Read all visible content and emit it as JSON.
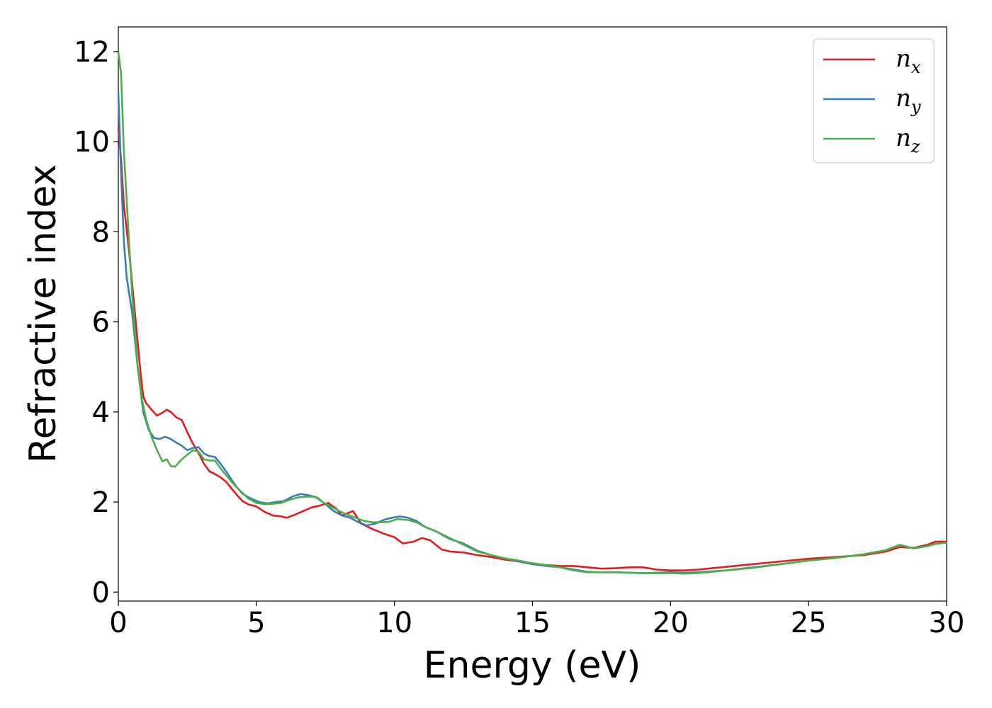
{
  "chart_data": {
    "type": "line",
    "xlabel": "Energy (eV)",
    "ylabel": "Refractive index",
    "xlim": [
      0,
      30
    ],
    "ylim": [
      -0.2,
      12.55
    ],
    "xticks": [
      "0",
      "5",
      "10",
      "15",
      "20",
      "25",
      "30"
    ],
    "yticks": [
      "0",
      "2",
      "4",
      "6",
      "8",
      "10",
      "12"
    ],
    "grid": false,
    "legend_position": "top-right",
    "series": [
      {
        "name": "n_x",
        "legend_base": "n",
        "legend_sub": "x",
        "color": "#e41a1c",
        "points": [
          [
            0,
            10.3
          ],
          [
            0.1,
            9.6
          ],
          [
            0.2,
            8.6
          ],
          [
            0.4,
            7.5
          ],
          [
            0.6,
            6.2
          ],
          [
            0.8,
            4.9
          ],
          [
            0.9,
            4.35
          ],
          [
            1.0,
            4.2
          ],
          [
            1.2,
            4.05
          ],
          [
            1.4,
            3.92
          ],
          [
            1.6,
            3.98
          ],
          [
            1.75,
            4.05
          ],
          [
            1.9,
            4.0
          ],
          [
            2.1,
            3.88
          ],
          [
            2.3,
            3.82
          ],
          [
            2.5,
            3.55
          ],
          [
            2.7,
            3.3
          ],
          [
            2.9,
            3.1
          ],
          [
            3.1,
            2.85
          ],
          [
            3.3,
            2.68
          ],
          [
            3.5,
            2.62
          ],
          [
            3.7,
            2.55
          ],
          [
            3.9,
            2.45
          ],
          [
            4.1,
            2.3
          ],
          [
            4.3,
            2.15
          ],
          [
            4.5,
            2.02
          ],
          [
            4.7,
            1.95
          ],
          [
            5.0,
            1.9
          ],
          [
            5.3,
            1.78
          ],
          [
            5.6,
            1.7
          ],
          [
            5.9,
            1.68
          ],
          [
            6.1,
            1.65
          ],
          [
            6.4,
            1.72
          ],
          [
            6.7,
            1.8
          ],
          [
            7.0,
            1.88
          ],
          [
            7.3,
            1.92
          ],
          [
            7.6,
            1.98
          ],
          [
            7.9,
            1.85
          ],
          [
            8.1,
            1.7
          ],
          [
            8.3,
            1.75
          ],
          [
            8.5,
            1.8
          ],
          [
            8.8,
            1.52
          ],
          [
            9.2,
            1.4
          ],
          [
            9.6,
            1.3
          ],
          [
            10.0,
            1.22
          ],
          [
            10.3,
            1.08
          ],
          [
            10.7,
            1.12
          ],
          [
            11.0,
            1.2
          ],
          [
            11.3,
            1.15
          ],
          [
            11.7,
            0.95
          ],
          [
            12.0,
            0.9
          ],
          [
            12.5,
            0.88
          ],
          [
            13.0,
            0.82
          ],
          [
            13.5,
            0.78
          ],
          [
            14.0,
            0.72
          ],
          [
            14.5,
            0.68
          ],
          [
            15.0,
            0.62
          ],
          [
            15.5,
            0.6
          ],
          [
            16.0,
            0.58
          ],
          [
            16.5,
            0.58
          ],
          [
            17.0,
            0.55
          ],
          [
            17.5,
            0.52
          ],
          [
            18.0,
            0.53
          ],
          [
            18.5,
            0.55
          ],
          [
            19.0,
            0.55
          ],
          [
            19.5,
            0.5
          ],
          [
            20.0,
            0.48
          ],
          [
            20.5,
            0.48
          ],
          [
            21.0,
            0.5
          ],
          [
            21.5,
            0.53
          ],
          [
            22.0,
            0.56
          ],
          [
            23.0,
            0.62
          ],
          [
            24.0,
            0.68
          ],
          [
            25.0,
            0.74
          ],
          [
            26.0,
            0.78
          ],
          [
            27.0,
            0.82
          ],
          [
            27.8,
            0.9
          ],
          [
            28.3,
            1.0
          ],
          [
            28.8,
            0.98
          ],
          [
            29.3,
            1.05
          ],
          [
            29.6,
            1.12
          ],
          [
            30.0,
            1.12
          ]
        ]
      },
      {
        "name": "n_y",
        "legend_base": "n",
        "legend_sub": "y",
        "color": "#377eb8",
        "points": [
          [
            0,
            11.1
          ],
          [
            0.1,
            9.3
          ],
          [
            0.2,
            7.8
          ],
          [
            0.3,
            7.0
          ],
          [
            0.5,
            6.2
          ],
          [
            0.7,
            5.0
          ],
          [
            0.9,
            4.0
          ],
          [
            1.1,
            3.6
          ],
          [
            1.3,
            3.42
          ],
          [
            1.5,
            3.4
          ],
          [
            1.7,
            3.45
          ],
          [
            1.9,
            3.4
          ],
          [
            2.1,
            3.32
          ],
          [
            2.3,
            3.25
          ],
          [
            2.5,
            3.15
          ],
          [
            2.7,
            3.2
          ],
          [
            2.9,
            3.22
          ],
          [
            3.1,
            3.08
          ],
          [
            3.3,
            3.02
          ],
          [
            3.5,
            3.0
          ],
          [
            3.7,
            2.85
          ],
          [
            3.9,
            2.68
          ],
          [
            4.1,
            2.5
          ],
          [
            4.3,
            2.32
          ],
          [
            4.5,
            2.18
          ],
          [
            4.8,
            2.08
          ],
          [
            5.1,
            2.0
          ],
          [
            5.4,
            1.97
          ],
          [
            5.7,
            2.0
          ],
          [
            6.0,
            2.02
          ],
          [
            6.3,
            2.12
          ],
          [
            6.6,
            2.18
          ],
          [
            6.9,
            2.15
          ],
          [
            7.2,
            2.1
          ],
          [
            7.5,
            1.95
          ],
          [
            7.8,
            1.8
          ],
          [
            8.1,
            1.7
          ],
          [
            8.4,
            1.65
          ],
          [
            8.7,
            1.55
          ],
          [
            9.0,
            1.48
          ],
          [
            9.3,
            1.52
          ],
          [
            9.6,
            1.6
          ],
          [
            9.9,
            1.65
          ],
          [
            10.2,
            1.68
          ],
          [
            10.5,
            1.65
          ],
          [
            10.8,
            1.58
          ],
          [
            11.1,
            1.45
          ],
          [
            11.5,
            1.35
          ],
          [
            12.0,
            1.18
          ],
          [
            12.5,
            1.08
          ],
          [
            13.0,
            0.92
          ],
          [
            13.5,
            0.82
          ],
          [
            14.0,
            0.75
          ],
          [
            14.5,
            0.68
          ],
          [
            15.0,
            0.62
          ],
          [
            15.5,
            0.58
          ],
          [
            16.0,
            0.55
          ],
          [
            16.5,
            0.5
          ],
          [
            17.0,
            0.45
          ],
          [
            17.5,
            0.44
          ],
          [
            18.0,
            0.44
          ],
          [
            18.5,
            0.43
          ],
          [
            19.0,
            0.42
          ],
          [
            19.5,
            0.43
          ],
          [
            20.0,
            0.44
          ],
          [
            20.5,
            0.43
          ],
          [
            21.0,
            0.44
          ],
          [
            21.5,
            0.46
          ],
          [
            22.0,
            0.48
          ],
          [
            23.0,
            0.55
          ],
          [
            24.0,
            0.62
          ],
          [
            25.0,
            0.7
          ],
          [
            26.0,
            0.76
          ],
          [
            27.0,
            0.84
          ],
          [
            27.8,
            0.93
          ],
          [
            28.3,
            1.05
          ],
          [
            28.8,
            0.97
          ],
          [
            29.3,
            1.02
          ],
          [
            29.6,
            1.07
          ],
          [
            30.0,
            1.1
          ]
        ]
      },
      {
        "name": "n_z",
        "legend_base": "n",
        "legend_sub": "z",
        "color": "#4daf4a",
        "points": [
          [
            0,
            12.0
          ],
          [
            0.1,
            11.5
          ],
          [
            0.2,
            9.8
          ],
          [
            0.35,
            8.2
          ],
          [
            0.5,
            6.6
          ],
          [
            0.7,
            5.0
          ],
          [
            0.85,
            4.3
          ],
          [
            1.0,
            3.85
          ],
          [
            1.2,
            3.45
          ],
          [
            1.4,
            3.15
          ],
          [
            1.6,
            2.9
          ],
          [
            1.75,
            2.95
          ],
          [
            1.9,
            2.8
          ],
          [
            2.05,
            2.78
          ],
          [
            2.3,
            2.95
          ],
          [
            2.5,
            3.05
          ],
          [
            2.7,
            3.15
          ],
          [
            2.9,
            3.12
          ],
          [
            3.1,
            2.95
          ],
          [
            3.3,
            2.92
          ],
          [
            3.5,
            2.92
          ],
          [
            3.7,
            2.75
          ],
          [
            3.9,
            2.6
          ],
          [
            4.1,
            2.45
          ],
          [
            4.3,
            2.32
          ],
          [
            4.5,
            2.2
          ],
          [
            4.7,
            2.08
          ],
          [
            5.0,
            1.98
          ],
          [
            5.3,
            1.95
          ],
          [
            5.6,
            1.96
          ],
          [
            5.9,
            1.98
          ],
          [
            6.2,
            2.05
          ],
          [
            6.5,
            2.1
          ],
          [
            6.8,
            2.12
          ],
          [
            7.1,
            2.12
          ],
          [
            7.4,
            2.0
          ],
          [
            7.7,
            1.9
          ],
          [
            8.0,
            1.8
          ],
          [
            8.3,
            1.72
          ],
          [
            8.6,
            1.65
          ],
          [
            8.9,
            1.58
          ],
          [
            9.2,
            1.55
          ],
          [
            9.5,
            1.55
          ],
          [
            9.8,
            1.56
          ],
          [
            10.1,
            1.62
          ],
          [
            10.5,
            1.6
          ],
          [
            10.8,
            1.55
          ],
          [
            11.1,
            1.45
          ],
          [
            11.5,
            1.35
          ],
          [
            12.0,
            1.2
          ],
          [
            12.5,
            1.05
          ],
          [
            13.0,
            0.9
          ],
          [
            13.5,
            0.82
          ],
          [
            14.0,
            0.75
          ],
          [
            14.5,
            0.7
          ],
          [
            15.0,
            0.64
          ],
          [
            15.5,
            0.6
          ],
          [
            16.0,
            0.55
          ],
          [
            16.5,
            0.48
          ],
          [
            17.0,
            0.44
          ],
          [
            17.5,
            0.44
          ],
          [
            18.0,
            0.44
          ],
          [
            18.5,
            0.43
          ],
          [
            19.0,
            0.42
          ],
          [
            19.5,
            0.42
          ],
          [
            20.0,
            0.42
          ],
          [
            20.5,
            0.41
          ],
          [
            21.0,
            0.42
          ],
          [
            21.5,
            0.45
          ],
          [
            22.0,
            0.48
          ],
          [
            23.0,
            0.54
          ],
          [
            24.0,
            0.62
          ],
          [
            25.0,
            0.7
          ],
          [
            26.0,
            0.76
          ],
          [
            27.0,
            0.84
          ],
          [
            27.8,
            0.93
          ],
          [
            28.3,
            1.05
          ],
          [
            28.8,
            0.97
          ],
          [
            29.3,
            1.02
          ],
          [
            29.6,
            1.07
          ],
          [
            30.0,
            1.1
          ]
        ]
      }
    ]
  }
}
